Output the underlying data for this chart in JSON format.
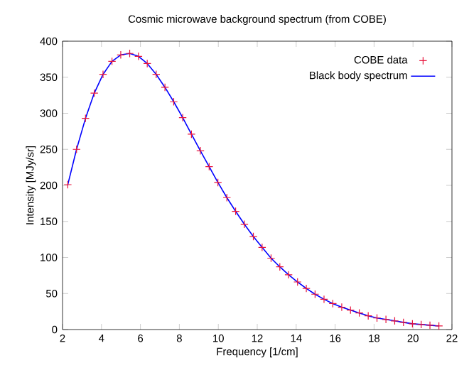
{
  "chart_data": {
    "type": "scatter",
    "title": "Cosmic microwave background spectrum (from COBE)",
    "xlabel": "Frequency [1/cm]",
    "ylabel": "Intensity [MJy/sr]",
    "xlim": [
      2,
      22
    ],
    "xticks": [
      2,
      4,
      6,
      8,
      10,
      12,
      14,
      16,
      18,
      20,
      22
    ],
    "ylim": [
      0,
      400
    ],
    "yticks": [
      0,
      50,
      100,
      150,
      200,
      250,
      300,
      350,
      400
    ],
    "grid": false,
    "legend": "top right",
    "series": [
      {
        "name": "COBE data",
        "marker": "cross",
        "color": "#e8143c",
        "x": [
          2.27,
          2.72,
          3.18,
          3.63,
          4.08,
          4.54,
          4.99,
          5.45,
          5.9,
          6.35,
          6.81,
          7.26,
          7.71,
          8.17,
          8.62,
          9.08,
          9.53,
          9.98,
          10.44,
          10.89,
          11.34,
          11.8,
          12.25,
          12.71,
          13.16,
          13.61,
          14.07,
          14.52,
          14.97,
          15.43,
          15.88,
          16.34,
          16.79,
          17.24,
          17.7,
          18.15,
          18.61,
          19.06,
          19.51,
          19.97,
          20.42,
          20.87,
          21.33
        ],
        "values": [
          201,
          250,
          293,
          328,
          354,
          372,
          381,
          383,
          379,
          369,
          354,
          336,
          316,
          294,
          271,
          248,
          226,
          204,
          183,
          164,
          146,
          129,
          114,
          99,
          87,
          76,
          66,
          57,
          49,
          42,
          36,
          31,
          27,
          23,
          19,
          16,
          14,
          12,
          10,
          8,
          7,
          6,
          5
        ]
      },
      {
        "name": "Black body spectrum",
        "type": "line",
        "marker": "none",
        "line_style": "solid",
        "color": "#0000ff",
        "x": [
          2.27,
          2.72,
          3.18,
          3.63,
          4.08,
          4.54,
          4.99,
          5.45,
          5.9,
          6.35,
          6.81,
          7.26,
          7.71,
          8.17,
          8.62,
          9.08,
          9.53,
          9.98,
          10.44,
          10.89,
          11.34,
          11.8,
          12.25,
          12.71,
          13.16,
          13.61,
          14.07,
          14.52,
          14.97,
          15.43,
          15.88,
          16.34,
          16.79,
          17.24,
          17.7,
          18.15,
          18.61,
          19.06,
          19.51,
          19.97,
          20.42,
          20.87,
          21.33
        ],
        "values": [
          201,
          250,
          293,
          328,
          354,
          372,
          381,
          383,
          379,
          369,
          354,
          336,
          316,
          294,
          271,
          248,
          226,
          204,
          183,
          164,
          146,
          129,
          114,
          99,
          87,
          76,
          66,
          57,
          49,
          42,
          36,
          31,
          27,
          23,
          19,
          16,
          14,
          12,
          10,
          8,
          7,
          6,
          5
        ]
      }
    ]
  }
}
